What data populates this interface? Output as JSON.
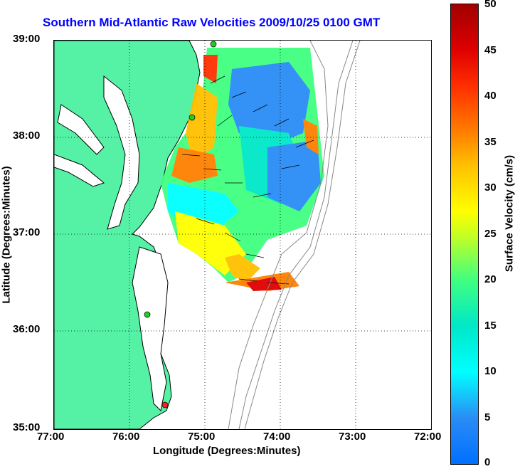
{
  "title": "Southern Mid-Atlantic Raw Velocities 2009/10/25 0100 GMT",
  "axes": {
    "xlabel": "Longitude (Degrees:Minutes)",
    "ylabel": "Latitude (Degrees:Minutes)",
    "xticks": [
      "77:00",
      "76:00",
      "75:00",
      "74:00",
      "73:00",
      "72:00"
    ],
    "yticks": [
      "39:00",
      "38:00",
      "37:00",
      "36:00",
      "35:00"
    ]
  },
  "colorbar": {
    "label": "Surface Velocity (cm/s)",
    "ticks": [
      "50",
      "45",
      "40",
      "35",
      "30",
      "25",
      "20",
      "15",
      "10",
      "5",
      "0"
    ],
    "range": [
      0,
      50
    ]
  },
  "colors": {
    "land": "#55f2a6",
    "title": "#0000ff",
    "station_green": "#22cc22",
    "station_red": "#ff2020"
  }
}
